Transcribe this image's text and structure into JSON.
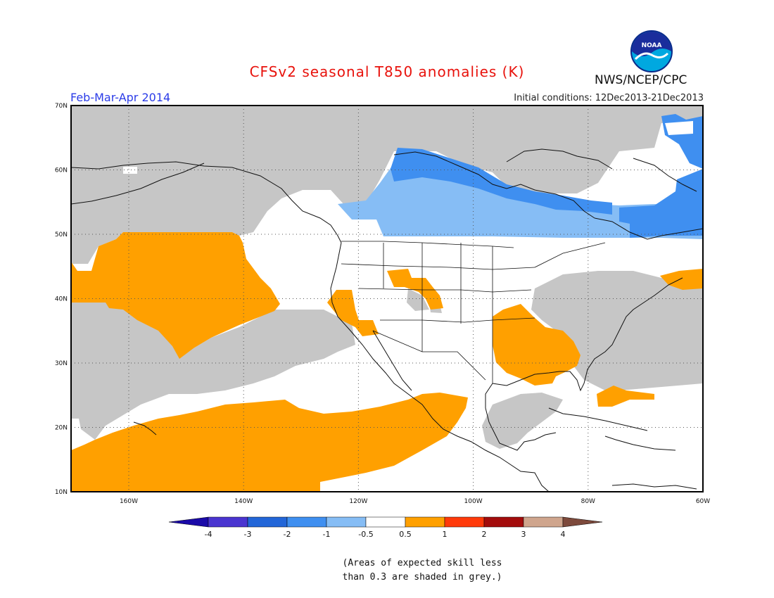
{
  "title": "CFSv2 seasonal T850 anomalies (K)",
  "period": "Feb-Mar-Apr 2014",
  "organization": "NWS/NCEP/CPC",
  "logo_text": "NOAA",
  "initial_conditions": "Initial conditions: 12Dec2013-21Dec2013",
  "note_line1": "(Areas of expected skill less",
  "note_line2": "than 0.3 are shaded in grey.)",
  "lat_labels": [
    "70N",
    "60N",
    "50N",
    "40N",
    "30N",
    "20N",
    "10N"
  ],
  "lon_labels": [
    "160W",
    "140W",
    "120W",
    "100W",
    "80W",
    "60W"
  ],
  "colorbar": {
    "colors": [
      "#1a0aa8",
      "#4a35d0",
      "#2266d8",
      "#3f8ff0",
      "#86bdf5",
      "#ffffff",
      "#ffa000",
      "#ff3a0a",
      "#a30c0c",
      "#cfa58d",
      "#7d4a3c"
    ],
    "labels": [
      "-4",
      "-3",
      "-2",
      "-1",
      "-0.5",
      "0.5",
      "1",
      "2",
      "3",
      "4"
    ]
  },
  "fill_colors": {
    "grey": "#c6c6c6",
    "orange": "#ffa000",
    "light_blue": "#86bdf5",
    "mid_blue": "#3f8ff0"
  }
}
